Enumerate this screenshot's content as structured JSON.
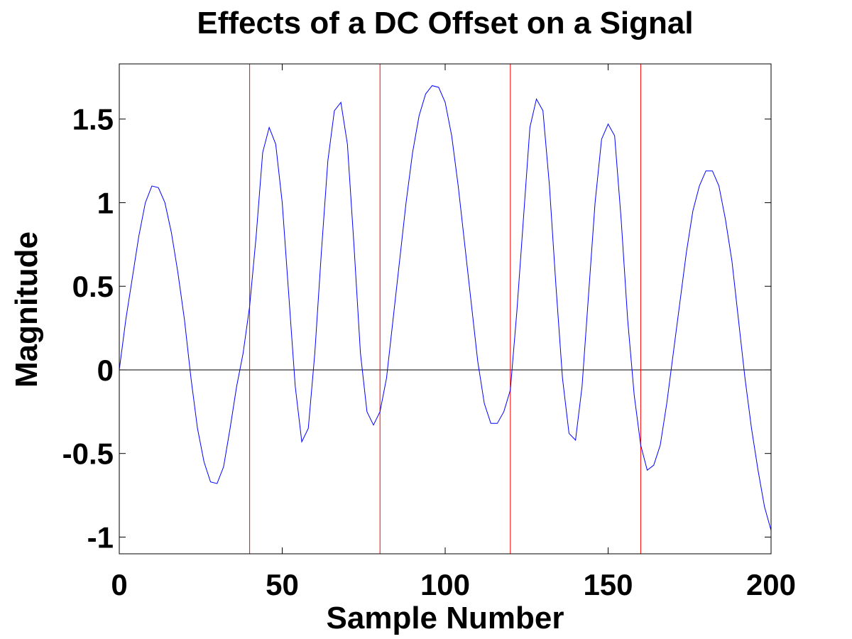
{
  "chart_data": {
    "type": "line",
    "title": "Effects of a DC Offset on a Signal",
    "x_label": "Sample Number",
    "y_label": "Magnitude",
    "x": [
      0,
      2,
      4,
      6,
      8,
      10,
      12,
      14,
      16,
      18,
      20,
      22,
      24,
      26,
      28,
      30,
      32,
      34,
      36,
      38,
      40,
      42,
      44,
      46,
      48,
      50,
      52,
      54,
      56,
      58,
      60,
      62,
      64,
      66,
      68,
      70,
      72,
      74,
      76,
      78,
      80,
      82,
      84,
      86,
      88,
      90,
      92,
      94,
      96,
      98,
      100,
      102,
      104,
      106,
      108,
      110,
      112,
      114,
      116,
      118,
      120,
      122,
      124,
      126,
      128,
      130,
      132,
      134,
      136,
      138,
      140,
      142,
      144,
      146,
      148,
      150,
      152,
      154,
      156,
      158,
      160,
      162,
      164,
      166,
      168,
      170,
      172,
      174,
      176,
      178,
      180,
      182,
      184,
      186,
      188,
      190,
      192,
      194,
      196,
      198,
      200
    ],
    "series": [
      {
        "color": "#0000ff",
        "values": [
          0,
          0.3,
          0.55,
          0.8,
          1.0,
          1.1,
          1.09,
          1.0,
          0.82,
          0.58,
          0.3,
          -0.05,
          -0.35,
          -0.55,
          -0.67,
          -0.68,
          -0.58,
          -0.35,
          -0.1,
          0.1,
          0.38,
          0.8,
          1.3,
          1.45,
          1.35,
          1.0,
          0.45,
          -0.1,
          -0.43,
          -0.35,
          0.1,
          0.7,
          1.25,
          1.55,
          1.6,
          1.35,
          0.75,
          0.1,
          -0.25,
          -0.33,
          -0.25,
          -0.05,
          0.3,
          0.65,
          1.0,
          1.3,
          1.52,
          1.65,
          1.7,
          1.69,
          1.6,
          1.4,
          1.1,
          0.75,
          0.4,
          0.05,
          -0.2,
          -0.32,
          -0.32,
          -0.25,
          -0.12,
          0.35,
          0.9,
          1.45,
          1.62,
          1.55,
          1.1,
          0.5,
          -0.05,
          -0.38,
          -0.42,
          -0.1,
          0.45,
          1.0,
          1.38,
          1.47,
          1.4,
          0.9,
          0.3,
          -0.15,
          -0.45,
          -0.6,
          -0.57,
          -0.45,
          -0.2,
          0.1,
          0.4,
          0.7,
          0.95,
          1.1,
          1.19,
          1.19,
          1.1,
          0.9,
          0.65,
          0.3,
          -0.05,
          -0.35,
          -0.6,
          -0.82,
          -0.96
        ]
      }
    ],
    "vlines": {
      "values": [
        40,
        80,
        120,
        160
      ],
      "color": "#ff0000"
    },
    "hline": {
      "value": 0,
      "color": "#000000"
    },
    "xlim": [
      0,
      200
    ],
    "xticks": [
      0,
      50,
      100,
      150,
      200
    ],
    "ylim": [
      -1.1,
      1.83
    ],
    "yticks": [
      -1,
      -0.5,
      0,
      0.5,
      1,
      1.5
    ],
    "grid": false
  }
}
